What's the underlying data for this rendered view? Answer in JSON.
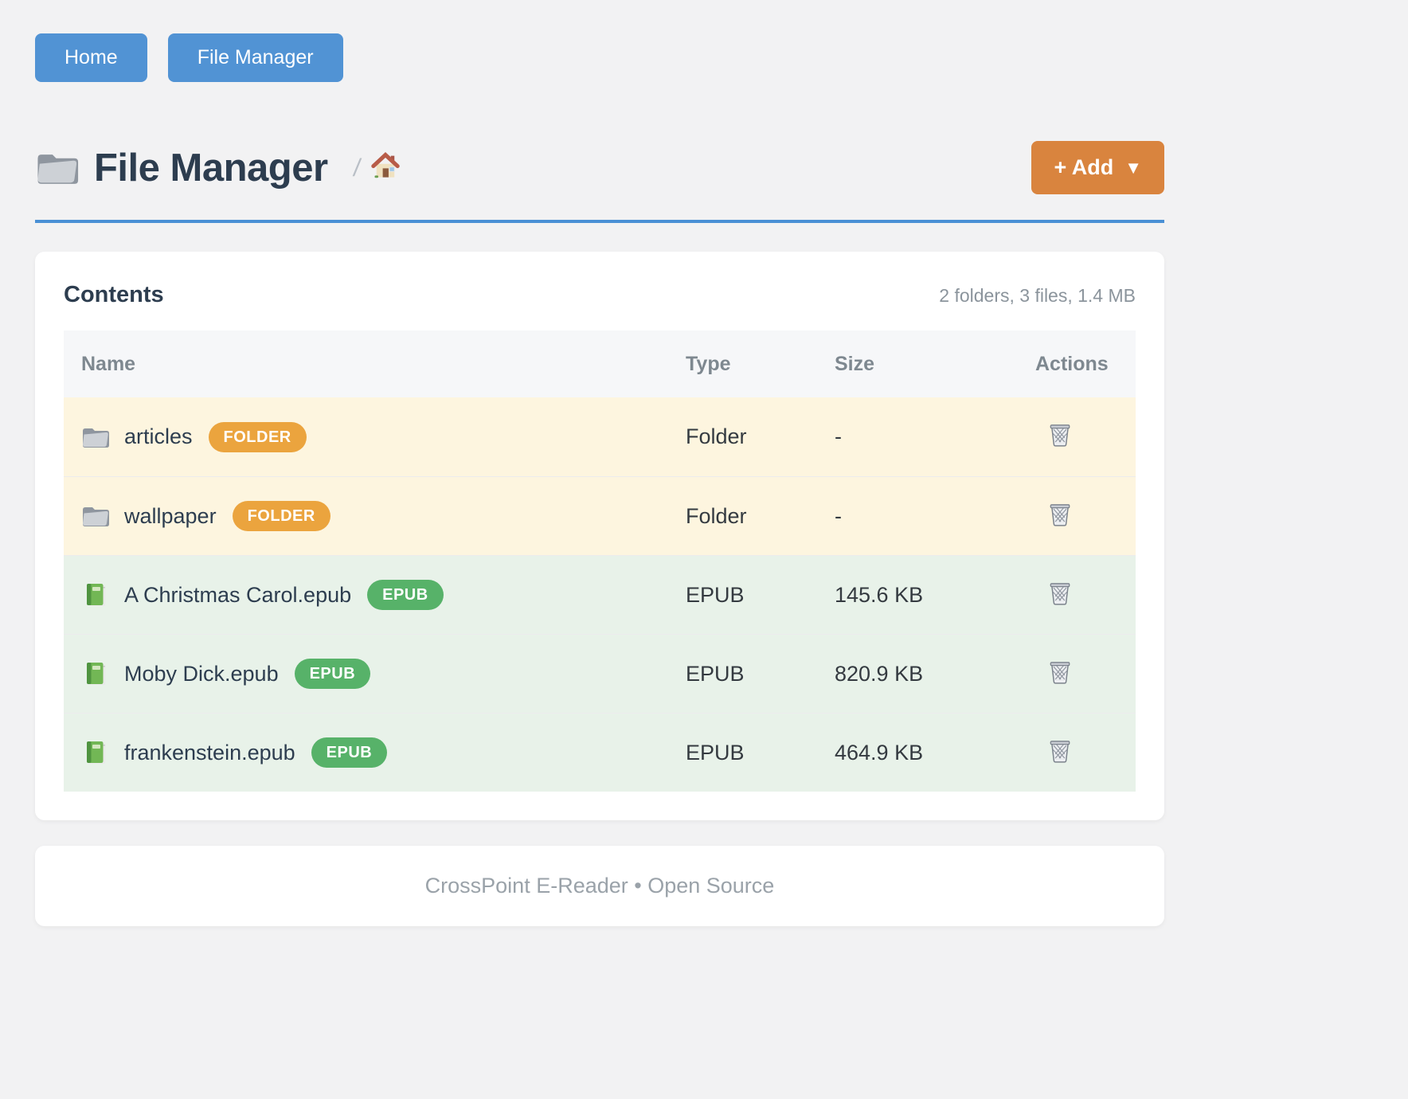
{
  "nav": {
    "items": [
      {
        "label": "Home"
      },
      {
        "label": "File Manager"
      }
    ]
  },
  "header": {
    "title": "File Manager",
    "title_icon": "folder-icon",
    "breadcrumb": {
      "separator": "/",
      "home_icon": "house-icon"
    },
    "add_button": {
      "label": "+ Add",
      "caret": "▼"
    }
  },
  "contents": {
    "heading": "Contents",
    "summary": "2 folders, 3 files, 1.4 MB",
    "table": {
      "columns": [
        "Name",
        "Type",
        "Size",
        "Actions"
      ],
      "rows": [
        {
          "name": "articles",
          "kind": "folder",
          "icon": "folder-icon",
          "badge": "FOLDER",
          "type": "Folder",
          "size": "-",
          "action_icon": "trash-icon"
        },
        {
          "name": "wallpaper",
          "kind": "folder",
          "icon": "folder-icon",
          "badge": "FOLDER",
          "type": "Folder",
          "size": "-",
          "action_icon": "trash-icon"
        },
        {
          "name": "A Christmas Carol.epub",
          "kind": "epub",
          "icon": "book-icon",
          "badge": "EPUB",
          "type": "EPUB",
          "size": "145.6 KB",
          "action_icon": "trash-icon"
        },
        {
          "name": "Moby Dick.epub",
          "kind": "epub",
          "icon": "book-icon",
          "badge": "EPUB",
          "type": "EPUB",
          "size": "820.9 KB",
          "action_icon": "trash-icon"
        },
        {
          "name": "frankenstein.epub",
          "kind": "epub",
          "icon": "book-icon",
          "badge": "EPUB",
          "type": "EPUB",
          "size": "464.9 KB",
          "action_icon": "trash-icon"
        }
      ]
    }
  },
  "footer": {
    "text": "CrossPoint E-Reader • Open Source"
  },
  "colors": {
    "primary_blue": "#5193d4",
    "accent_rule_blue": "#4a90d5",
    "add_button_orange": "#d9843e",
    "folder_badge": "#eba43e",
    "epub_badge": "#57b269",
    "folder_row_bg": "#fdf5df",
    "epub_row_bg": "#e8f2e9",
    "table_header_bg": "#f6f7f9"
  }
}
